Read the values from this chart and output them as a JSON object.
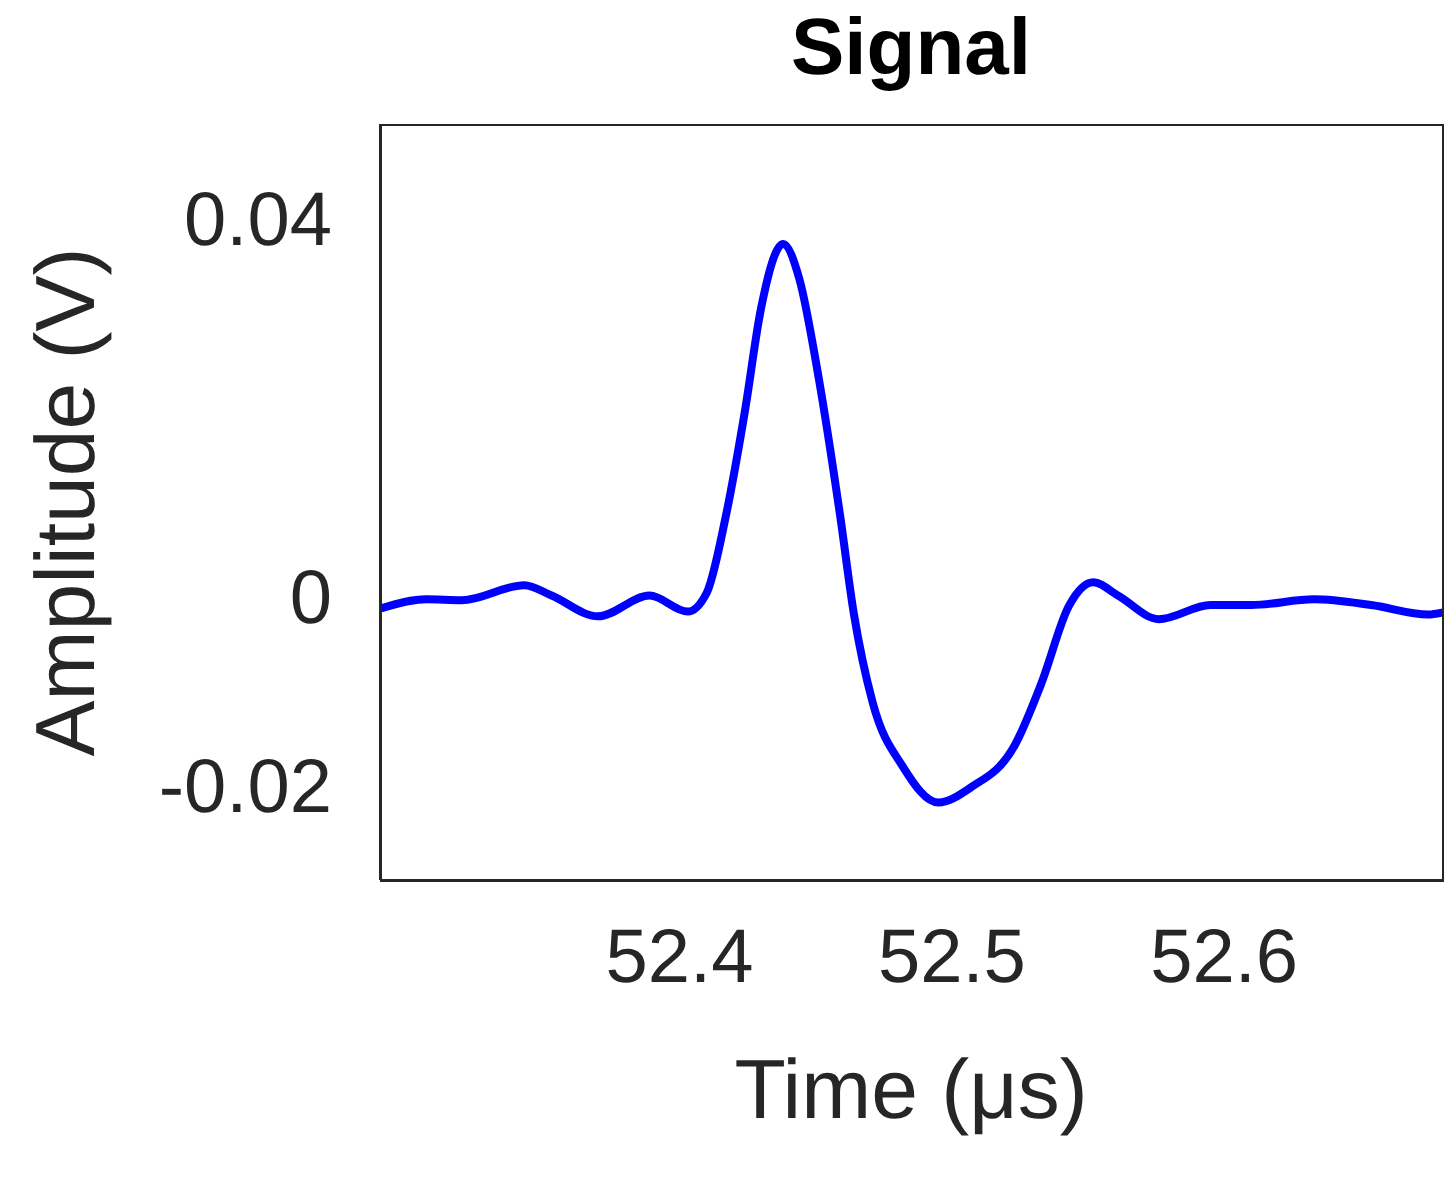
{
  "chart_data": {
    "type": "line",
    "title": "Signal",
    "xlabel": "Time (μs)",
    "ylabel": "Amplitude (V)",
    "xlim": [
      52.29,
      52.68
    ],
    "xticks": [
      52.4,
      52.5,
      52.6
    ],
    "ylim": [
      -0.03,
      0.05
    ],
    "yticks": [
      -0.02,
      0,
      0.04
    ],
    "grid": false,
    "legend": false,
    "marker": "none",
    "line_style": "solid",
    "x": [
      52.291,
      52.307,
      52.32,
      52.343,
      52.353,
      52.37,
      52.389,
      52.403,
      52.41,
      52.417,
      52.424,
      52.43,
      52.438,
      52.444,
      52.451,
      52.459,
      52.464,
      52.471,
      52.482,
      52.495,
      52.507,
      52.523,
      52.533,
      52.543,
      52.552,
      52.561,
      52.576,
      52.595,
      52.61,
      52.633,
      52.654,
      52.675,
      52.68
    ],
    "series": [
      {
        "color": "#0000ff",
        "values": [
          -0.0012,
          -0.0003,
          -0.0004,
          0.0012,
          0.0001,
          -0.0021,
          0.0001,
          -0.0016,
          0.0004,
          0.0085,
          0.0196,
          0.0306,
          0.0373,
          0.0336,
          0.0233,
          0.0085,
          -0.0018,
          -0.0113,
          -0.018,
          -0.0218,
          -0.0202,
          -0.0158,
          -0.0091,
          -0.001,
          0.0015,
          0.0001,
          -0.0024,
          -0.0009,
          -0.0009,
          -0.0003,
          -0.0009,
          -0.0019,
          -0.0017
        ]
      }
    ]
  }
}
